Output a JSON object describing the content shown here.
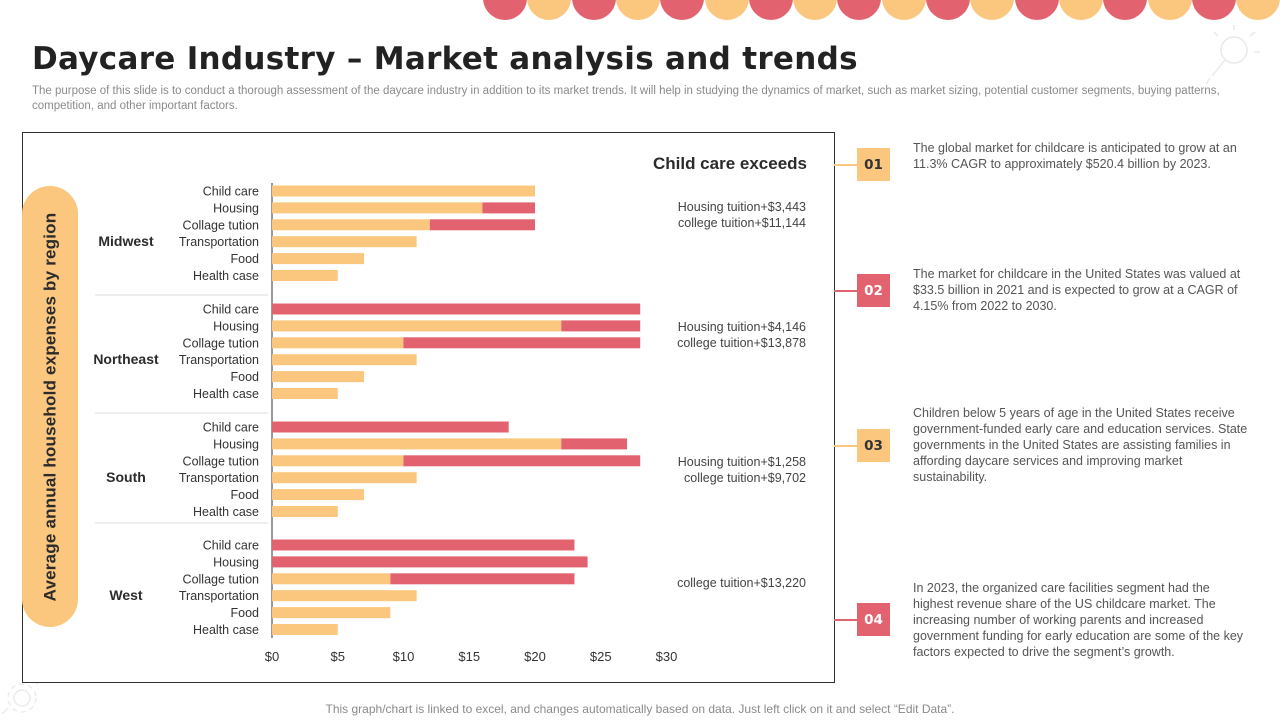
{
  "page": {
    "title": "Daycare Industry – Market analysis and trends",
    "subtitle": "The purpose of this slide is to conduct a thorough assessment of the daycare industry in addition to its market trends. It will help in studying the dynamics of market, such as market sizing, potential customer segments, buying patterns, competition, and other important factors.",
    "footer": "This graph/chart is linked to excel,  and changes automatically based on data. Just left click on it and select “Edit Data”."
  },
  "colors": {
    "light": "#fbc67d",
    "dark": "#e2636f",
    "badge_light": "#fbc67d",
    "badge_dark": "#e2636f"
  },
  "chart_data": {
    "type": "bar",
    "orientation": "horizontal",
    "stacked": true,
    "title": "",
    "ylabel": "Average annual household expenses by region",
    "xlabel": "",
    "xlim": [
      0,
      30
    ],
    "xticks": [
      "$0",
      "$5",
      "$10",
      "$15",
      "$20",
      "$25",
      "$30"
    ],
    "xtick_values": [
      0,
      5,
      10,
      15,
      20,
      25,
      30
    ],
    "categories": [
      "Child care",
      "Housing",
      "Collage tution",
      "Transportation",
      "Food",
      "Health case"
    ],
    "groups": [
      {
        "name": "Midwest",
        "series": [
          {
            "name": "light",
            "values": [
              20,
              16,
              12,
              11,
              7,
              5
            ]
          },
          {
            "name": "dark",
            "values": [
              0,
              4,
              8,
              0,
              0,
              0
            ]
          }
        ]
      },
      {
        "name": "Northeast",
        "series": [
          {
            "name": "light",
            "values": [
              0,
              22,
              10,
              11,
              7,
              5
            ]
          },
          {
            "name": "dark",
            "values": [
              28,
              6,
              18,
              0,
              0,
              0
            ]
          }
        ]
      },
      {
        "name": "South",
        "series": [
          {
            "name": "light",
            "values": [
              0,
              22,
              10,
              11,
              7,
              5
            ]
          },
          {
            "name": "dark",
            "values": [
              18,
              5,
              18,
              0,
              0,
              0
            ]
          }
        ]
      },
      {
        "name": "West",
        "series": [
          {
            "name": "light",
            "values": [
              0,
              0,
              9,
              11,
              9,
              5
            ]
          },
          {
            "name": "dark",
            "values": [
              23,
              24,
              14,
              0,
              0,
              0
            ]
          }
        ]
      }
    ]
  },
  "exceeds": {
    "title": "Child care exceeds",
    "notes": [
      {
        "line1": "Housing tuition+$3,443",
        "line2": "college tuition+$11,144"
      },
      {
        "line1": "Housing tuition+$4,146",
        "line2": "college tuition+$13,878"
      },
      {
        "line1": "Housing tuition+$1,258",
        "line2": "college tuition+$9,702"
      },
      {
        "line1": "college tuition+$13,220",
        "line2": ""
      }
    ]
  },
  "insights": [
    {
      "number": "01",
      "text": "The global market for childcare is anticipated to grow at an 11.3% CAGR to approximately $520.4 billion by 2023."
    },
    {
      "number": "02",
      "text": "The market for childcare in the United States was valued at $33.5 billion in 2021 and is expected to grow at a CAGR of 4.15% from 2022 to 2030."
    },
    {
      "number": "03",
      "text": "Children below 5 years of age in the United States receive government-funded  early care and education services. State governments  in the United States are assisting families in affording daycare services and improving market sustainability."
    },
    {
      "number": "04",
      "text": "In 2023, the organized care facilities segment had the highest revenue  share of the US childcare market. The increasing number of working parents and increased government  funding for early education are some of the key factors expected to drive the segment’s growth."
    }
  ]
}
